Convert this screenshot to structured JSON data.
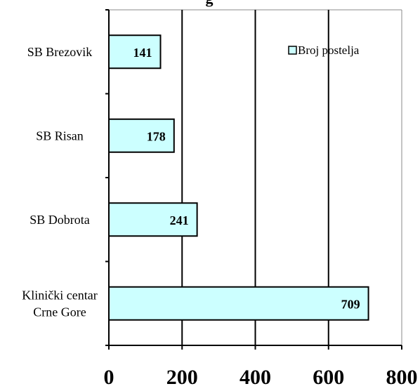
{
  "chart_data": {
    "type": "bar",
    "orientation": "horizontal",
    "title": "",
    "title_fragment": "g",
    "categories": [
      "SB Brezovik",
      "SB Risan",
      "SB Dobrota",
      "Klinički centar Crne Gore"
    ],
    "category_lines": [
      [
        "SB Brezovik"
      ],
      [
        "SB Risan"
      ],
      [
        "SB Dobrota"
      ],
      [
        "Klinički centar",
        "Crne Gore"
      ]
    ],
    "series": [
      {
        "name": "Broj postelja",
        "values": [
          141,
          178,
          241,
          709
        ]
      }
    ],
    "data_labels": [
      "141",
      "178",
      "241",
      "709"
    ],
    "x_ticks": [
      0,
      200,
      400,
      600,
      800
    ],
    "x_tick_labels": [
      "0",
      "200",
      "400",
      "600",
      "800"
    ],
    "xlim": [
      0,
      800
    ],
    "grid": "vertical",
    "legend_position": "top-right",
    "bar_color": "#ccffff"
  }
}
